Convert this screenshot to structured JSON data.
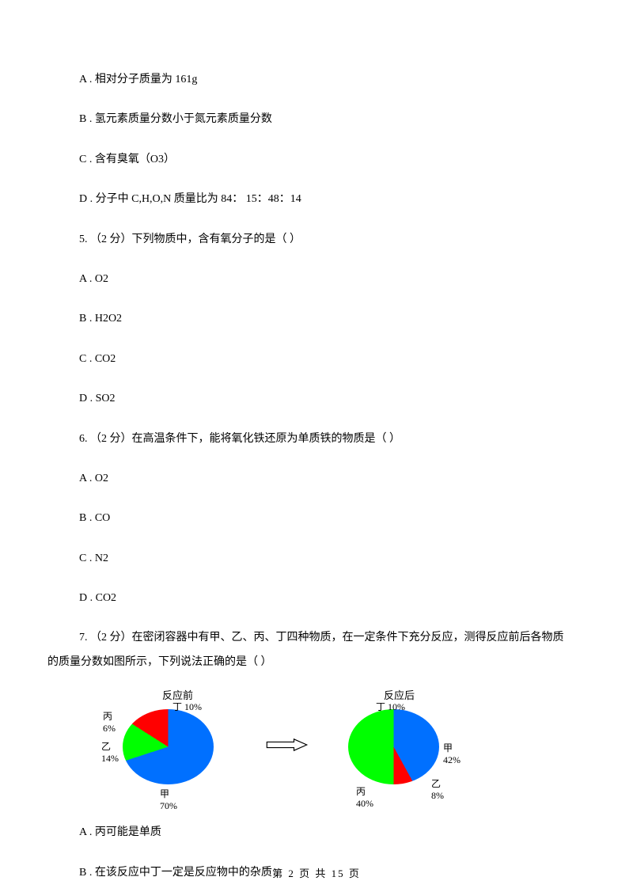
{
  "items": {
    "q4A": "A .  相对分子质量为 161g",
    "q4B": "B .  氢元素质量分数小于氮元素质量分数",
    "q4C": "C .  含有臭氧（O3）",
    "q4D": "D .  分子中 C,H,O,N 质量比为 84：  15：48：14",
    "q5": "5.  （2 分）下列物质中，含有氧分子的是（      ）",
    "q5A": "A .  O2",
    "q5B": "B .  H2O2",
    "q5C": "C .  CO2",
    "q5D": "D .  SO2",
    "q6": "6.  （2 分）在高温条件下，能将氧化铁还原为单质铁的物质是（      ）",
    "q6A": "A .  O2",
    "q6B": "B .  CO",
    "q6C": "C .  N2",
    "q6D": "D .  CO2",
    "q7_1": "7.  （2 分）在密闭容器中有甲、乙、丙、丁四种物质，在一定条件下充分反应，测得反应前后各物质",
    "q7_2": "的质量分数如图所示，下列说法正确的是（      ）",
    "q7A": "A .  丙可能是单质",
    "q7B": "B .  在该反应中丁一定是反应物中的杂质"
  },
  "charts": {
    "before": {
      "title": "反应前",
      "slices": [
        {
          "name": "甲",
          "value": 70,
          "label": "甲\n70%",
          "color": "#0070ff"
        },
        {
          "name": "乙",
          "value": 14,
          "label": "乙\n14%",
          "color": "#00ff00"
        },
        {
          "name": "丙",
          "value": 6,
          "label": "丙\n6%",
          "color": "#ff0000"
        },
        {
          "name": "丁",
          "value": 10,
          "label": "丁 10%",
          "color": "#a020f0"
        }
      ]
    },
    "after": {
      "title": "反应后",
      "slices": [
        {
          "name": "甲",
          "value": 42,
          "label": "甲\n42%",
          "color": "#0070ff"
        },
        {
          "name": "乙",
          "value": 8,
          "label": "乙\n8%",
          "color": "#ff0000"
        },
        {
          "name": "丙",
          "value": 40,
          "label": "丙\n40%",
          "color": "#00ff00"
        },
        {
          "name": "丁",
          "value": 10,
          "label": "丁 10%",
          "color": "#a020f0"
        }
      ]
    },
    "arrow_stroke": "#000000",
    "arrow_fill": "#ffffff"
  },
  "footer": "第  2  页  共  15  页"
}
